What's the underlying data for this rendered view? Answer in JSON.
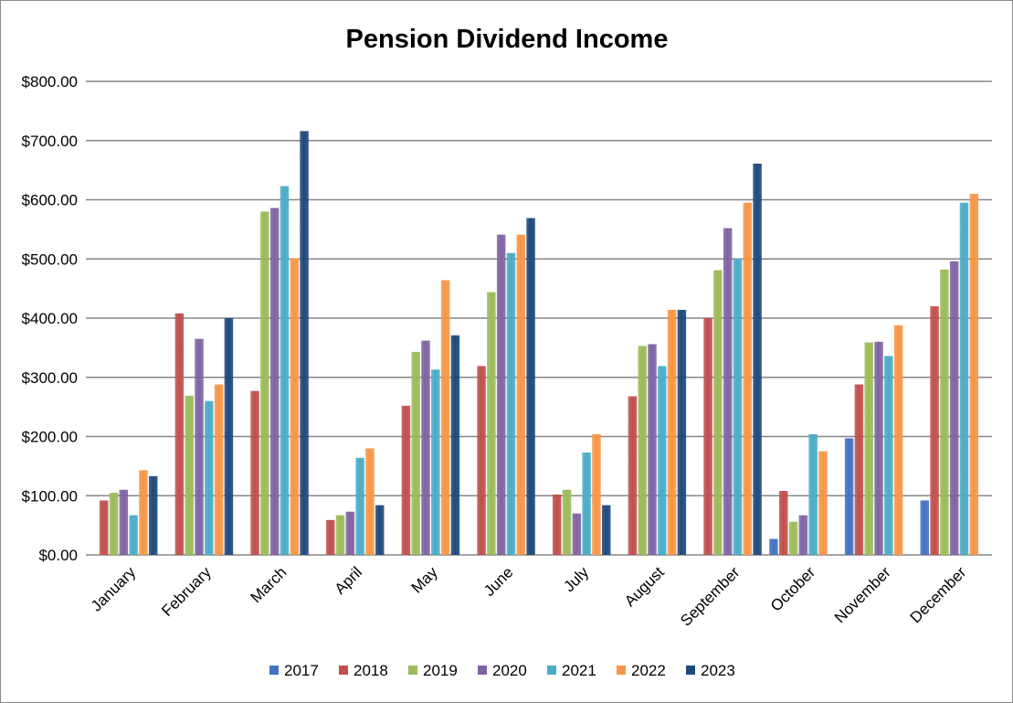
{
  "chart_data": {
    "type": "bar",
    "title": "Pension Dividend Income",
    "xlabel": "",
    "ylabel": "",
    "ylim": [
      0,
      800
    ],
    "yticks": [
      0,
      100,
      200,
      300,
      400,
      500,
      600,
      700,
      800
    ],
    "ytick_labels": [
      "$0.00",
      "$100.00",
      "$200.00",
      "$300.00",
      "$400.00",
      "$500.00",
      "$600.00",
      "$700.00",
      "$800.00"
    ],
    "grid": true,
    "legend_position": "bottom",
    "categories": [
      "January",
      "February",
      "March",
      "April",
      "May",
      "June",
      "July",
      "August",
      "September",
      "October",
      "November",
      "December"
    ],
    "series": [
      {
        "name": "2017",
        "color": "#4472C4",
        "values": [
          null,
          null,
          null,
          null,
          null,
          null,
          null,
          null,
          null,
          27,
          197,
          92
        ]
      },
      {
        "name": "2018",
        "color": "#C0504D",
        "values": [
          92,
          408,
          277,
          59,
          252,
          319,
          102,
          268,
          400,
          108,
          288,
          420
        ]
      },
      {
        "name": "2019",
        "color": "#9BBB59",
        "values": [
          105,
          269,
          580,
          67,
          343,
          444,
          110,
          353,
          481,
          56,
          359,
          482
        ]
      },
      {
        "name": "2020",
        "color": "#8064A2",
        "values": [
          110,
          365,
          586,
          73,
          362,
          541,
          70,
          356,
          552,
          67,
          360,
          496
        ]
      },
      {
        "name": "2021",
        "color": "#4BACC6",
        "values": [
          67,
          260,
          623,
          164,
          313,
          510,
          173,
          319,
          500,
          204,
          336,
          595
        ]
      },
      {
        "name": "2022",
        "color": "#F79646",
        "values": [
          143,
          288,
          501,
          180,
          464,
          541,
          204,
          414,
          595,
          175,
          388,
          610
        ]
      },
      {
        "name": "2023",
        "color": "#1F497D",
        "values": [
          133,
          400,
          716,
          84,
          371,
          569,
          84,
          414,
          661,
          null,
          null,
          null
        ]
      }
    ]
  }
}
